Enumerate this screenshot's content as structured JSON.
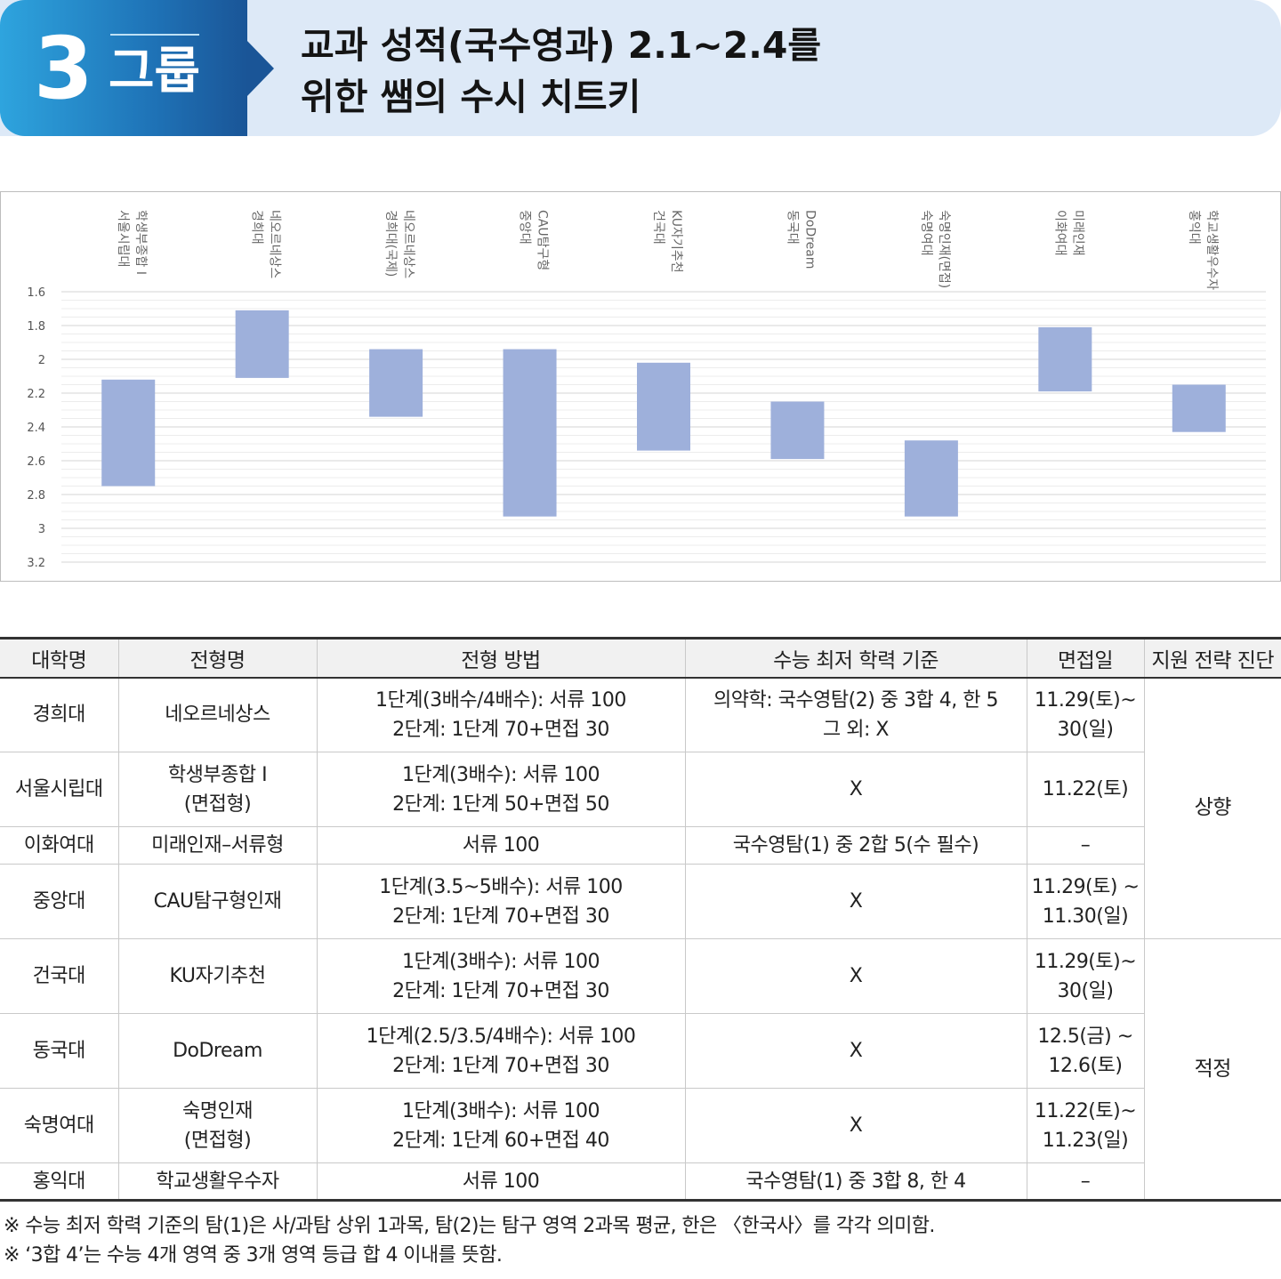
{
  "header": {
    "group_number": "3",
    "group_label": "그룹",
    "title_line1": "교과 성적(국수영과) 2.1~2.4를",
    "title_line2": "위한 쌤의 수시 치트키"
  },
  "chart_data": {
    "type": "bar",
    "subtype": "floating-range",
    "categories": [
      [
        "학생부종합 I",
        "서울시립대"
      ],
      [
        "네오르네상스",
        "경희대"
      ],
      [
        "네오르네상스",
        "경희대(국제)"
      ],
      [
        "CAU탐구형",
        "중앙대"
      ],
      [
        "KU자기추천",
        "건국대"
      ],
      [
        "DoDream",
        "동국대"
      ],
      [
        "숙명인재(면접)",
        "숙명여대"
      ],
      [
        "미래인재",
        "이화여대"
      ],
      [
        "학교생활우수자",
        "홍익대"
      ]
    ],
    "ranges": [
      [
        2.12,
        2.75
      ],
      [
        1.71,
        2.11
      ],
      [
        1.94,
        2.34
      ],
      [
        1.94,
        2.93
      ],
      [
        2.02,
        2.54
      ],
      [
        2.25,
        2.59
      ],
      [
        2.48,
        2.93
      ],
      [
        1.81,
        2.19
      ],
      [
        2.15,
        2.43
      ]
    ],
    "yticks": [
      "1.6",
      "1.8",
      "2",
      "2.2",
      "2.4",
      "2.6",
      "2.8",
      "3",
      "3.2"
    ],
    "ylim": [
      1.6,
      3.2
    ],
    "y_inverted": true,
    "grid": true,
    "bar_color": "#9eb0db"
  },
  "table": {
    "headers": [
      "대학명",
      "전형명",
      "전형 방법",
      "수능 최저 학력 기준",
      "면접일",
      "지원 전략 진단"
    ],
    "rows": [
      {
        "univ": "경희대",
        "track": [
          "네오르네상스"
        ],
        "method": [
          "1단계(3배수/4배수): 서류 100",
          "2단계: 1단계 70+면접 30"
        ],
        "minimum": [
          "의약학: 국수영탐(2) 중 3합 4, 한 5",
          "그 외: X"
        ],
        "interview": [
          "11.29(토)~",
          "30(일)"
        ]
      },
      {
        "univ": "서울시립대",
        "track": [
          "학생부종합 I",
          "(면접형)"
        ],
        "method": [
          "1단계(3배수): 서류 100",
          "2단계: 1단계 50+면접 50"
        ],
        "minimum": [
          "X"
        ],
        "interview": [
          "11.22(토)"
        ]
      },
      {
        "univ": "이화여대",
        "track": [
          "미래인재–서류형"
        ],
        "method": [
          "서류 100"
        ],
        "minimum": [
          "국수영탐(1) 중 2합 5(수 필수)"
        ],
        "interview": [
          "–"
        ]
      },
      {
        "univ": "중앙대",
        "track": [
          "CAU탐구형인재"
        ],
        "method": [
          "1단계(3.5~5배수): 서류 100",
          "2단계: 1단계 70+면접 30"
        ],
        "minimum": [
          "X"
        ],
        "interview": [
          "11.29(토) ~",
          "11.30(일)"
        ]
      },
      {
        "univ": "건국대",
        "track": [
          "KU자기추천"
        ],
        "method": [
          "1단계(3배수): 서류 100",
          "2단계: 1단계 70+면접 30"
        ],
        "minimum": [
          "X"
        ],
        "interview": [
          "11.29(토)~",
          "30(일)"
        ]
      },
      {
        "univ": "동국대",
        "track": [
          "DoDream"
        ],
        "method": [
          "1단계(2.5/3.5/4배수): 서류 100",
          "2단계: 1단계 70+면접 30"
        ],
        "minimum": [
          "X"
        ],
        "interview": [
          "12.5(금) ~",
          "12.6(토)"
        ]
      },
      {
        "univ": "숙명여대",
        "track": [
          "숙명인재",
          "(면접형)"
        ],
        "method": [
          "1단계(3배수): 서류 100",
          "2단계: 1단계 60+면접 40"
        ],
        "minimum": [
          "X"
        ],
        "interview": [
          "11.22(토)~",
          "11.23(일)"
        ]
      },
      {
        "univ": "홍익대",
        "track": [
          "학교생활우수자"
        ],
        "method": [
          "서류 100"
        ],
        "minimum": [
          "국수영탐(1) 중 3합 8, 한 4"
        ],
        "interview": [
          "–"
        ]
      }
    ],
    "strategy": [
      {
        "label": "상향",
        "rowspan": 4
      },
      {
        "label": "적정",
        "rowspan": 4
      }
    ]
  },
  "notes": [
    "※ 수능 최저 학력 기준의 탐(1)은 사/과탐 상위 1과목, 탐(2)는 탐구 영역 2과목 평균, 한은 〈한국사〉를 각각 의미함.",
    "※ ‘3합 4’는 수능 4개 영역 중 3개 영역 등급 합 4 이내를 뜻함."
  ]
}
